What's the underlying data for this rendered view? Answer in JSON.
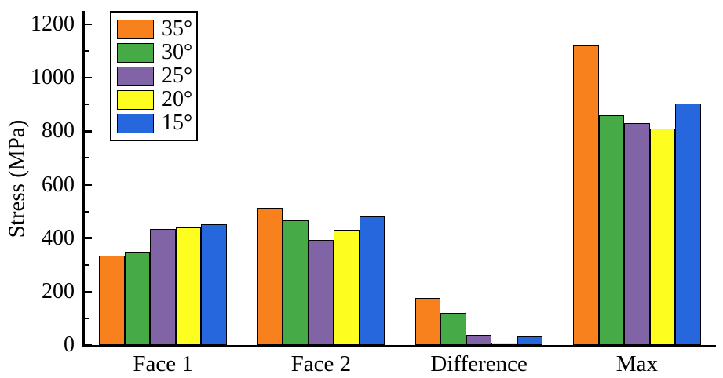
{
  "chart_data": {
    "type": "bar",
    "title": "",
    "xlabel": "",
    "ylabel": "Stress (MPa)",
    "ylim": [
      0,
      1250
    ],
    "grid": false,
    "legend_position": "top-left-inside",
    "categories": [
      "Face 1",
      "Face 2",
      "Difference",
      "Max"
    ],
    "series": [
      {
        "name": "35°",
        "color": "#F8811D",
        "values": [
          335,
          514,
          175,
          1121
        ]
      },
      {
        "name": "30°",
        "color": "#46AB46",
        "values": [
          348,
          468,
          120,
          860
        ]
      },
      {
        "name": "25°",
        "color": "#8064A5",
        "values": [
          433,
          394,
          39,
          830
        ]
      },
      {
        "name": "20°",
        "color": "#FDFD1F",
        "values": [
          439,
          430,
          8,
          810
        ]
      },
      {
        "name": "15°",
        "color": "#2667DE",
        "values": [
          451,
          482,
          33,
          903
        ]
      }
    ],
    "ytick_labels": [
      "0",
      "200",
      "400",
      "600",
      "800",
      "1000",
      "1200"
    ],
    "ytick_values": [
      0,
      200,
      400,
      600,
      800,
      1000,
      1200
    ],
    "yticks_minor": [
      100,
      300,
      500,
      700,
      900,
      1100
    ],
    "bar_outline_color": "#000000",
    "axis_color": "#000000"
  }
}
